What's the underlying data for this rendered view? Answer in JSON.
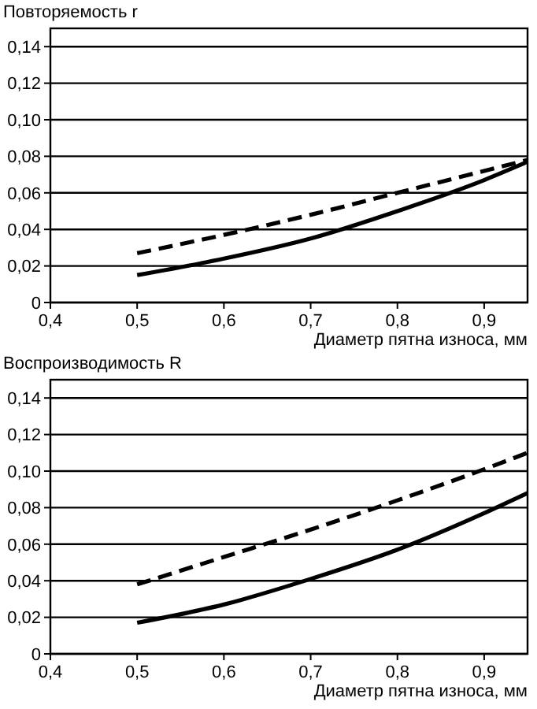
{
  "chart_data": [
    {
      "type": "line",
      "ylabel": "Повторяемость r",
      "xlabel": "Диаметр пятна износа, мм",
      "x": [
        0.5,
        0.6,
        0.7,
        0.8,
        0.9,
        0.95
      ],
      "series": [
        {
          "color": "#000000",
          "line_style": "solid",
          "values": [
            0.015,
            0.024,
            0.035,
            0.05,
            0.067,
            0.077
          ]
        },
        {
          "color": "#000000",
          "line_style": "dashed",
          "values": [
            0.027,
            0.037,
            0.048,
            0.06,
            0.072,
            0.078
          ]
        }
      ],
      "xlim": [
        0.4,
        0.95
      ],
      "xticks": [
        {
          "value": 0.4,
          "label": "0,4"
        },
        {
          "value": 0.5,
          "label": "0,5"
        },
        {
          "value": 0.6,
          "label": "0,6"
        },
        {
          "value": 0.7,
          "label": "0,7"
        },
        {
          "value": 0.8,
          "label": "0,8"
        },
        {
          "value": 0.9,
          "label": "0,9"
        }
      ],
      "ylim": [
        0,
        0.15
      ],
      "yticks": [
        0,
        {
          "value": 0.02,
          "label": "0,02"
        },
        {
          "value": 0.04,
          "label": "0,04"
        },
        {
          "value": 0.06,
          "label": "0,06"
        },
        {
          "value": 0.08,
          "label": "0,08"
        },
        {
          "value": 0.1,
          "label": "0,10"
        },
        {
          "value": 0.12,
          "label": "0,12"
        },
        {
          "value": 0.14,
          "label": "0,14"
        }
      ],
      "grid": "y"
    },
    {
      "type": "line",
      "ylabel": "Воспроизводимость R",
      "xlabel": "Диаметр пятна износа, мм",
      "x": [
        0.5,
        0.6,
        0.7,
        0.8,
        0.9,
        0.95
      ],
      "series": [
        {
          "color": "#000000",
          "line_style": "solid",
          "values": [
            0.017,
            0.027,
            0.041,
            0.057,
            0.077,
            0.088
          ]
        },
        {
          "color": "#000000",
          "line_style": "dashed",
          "values": [
            0.038,
            0.053,
            0.068,
            0.084,
            0.101,
            0.11
          ]
        }
      ],
      "xlim": [
        0.4,
        0.95
      ],
      "xticks": [
        {
          "value": 0.4,
          "label": "0,4"
        },
        {
          "value": 0.5,
          "label": "0,5"
        },
        {
          "value": 0.6,
          "label": "0,6"
        },
        {
          "value": 0.7,
          "label": "0,7"
        },
        {
          "value": 0.8,
          "label": "0,8"
        },
        {
          "value": 0.9,
          "label": "0,9"
        }
      ],
      "ylim": [
        0,
        0.15
      ],
      "yticks": [
        0,
        {
          "value": 0.02,
          "label": "0,02"
        },
        {
          "value": 0.04,
          "label": "0,04"
        },
        {
          "value": 0.06,
          "label": "0,06"
        },
        {
          "value": 0.08,
          "label": "0,08"
        },
        {
          "value": 0.1,
          "label": "0,10"
        },
        {
          "value": 0.12,
          "label": "0,12"
        },
        {
          "value": 0.14,
          "label": "0,14"
        }
      ],
      "grid": "y"
    }
  ]
}
